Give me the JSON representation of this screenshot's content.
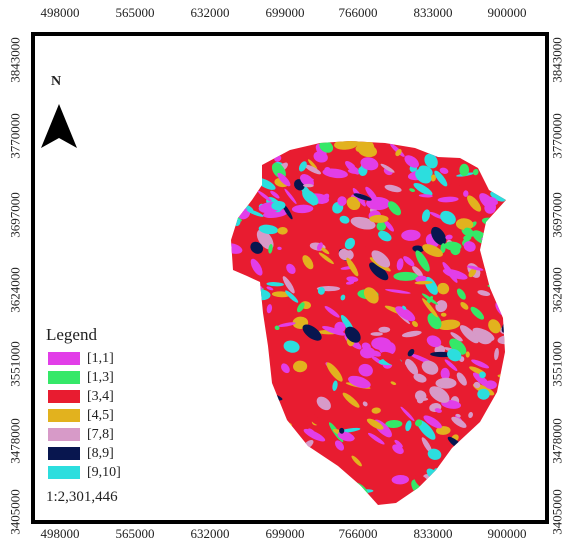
{
  "map": {
    "axis_x_labels": [
      "498000",
      "565000",
      "632000",
      "699000",
      "766000",
      "833000",
      "900000"
    ],
    "axis_y_labels": [
      "3843000",
      "3770000",
      "3697000",
      "3624000",
      "3551000",
      "3478000",
      "3405000"
    ],
    "north_label": "N",
    "north_arrow_icon": "north-arrow-icon",
    "legend": {
      "title": "Legend",
      "items": [
        {
          "label": "[1,1]",
          "color": "#e23ee8"
        },
        {
          "label": "[1,3]",
          "color": "#35e868"
        },
        {
          "label": "[3,4]",
          "color": "#e81c30"
        },
        {
          "label": "[4,5]",
          "color": "#e2b21e"
        },
        {
          "label": "[7,8]",
          "color": "#d79ac8"
        },
        {
          "label": "[8,9]",
          "color": "#08164f"
        },
        {
          "label": "[9,10]",
          "color": "#2cdede"
        }
      ]
    },
    "scale": "1:2,301,446"
  }
}
